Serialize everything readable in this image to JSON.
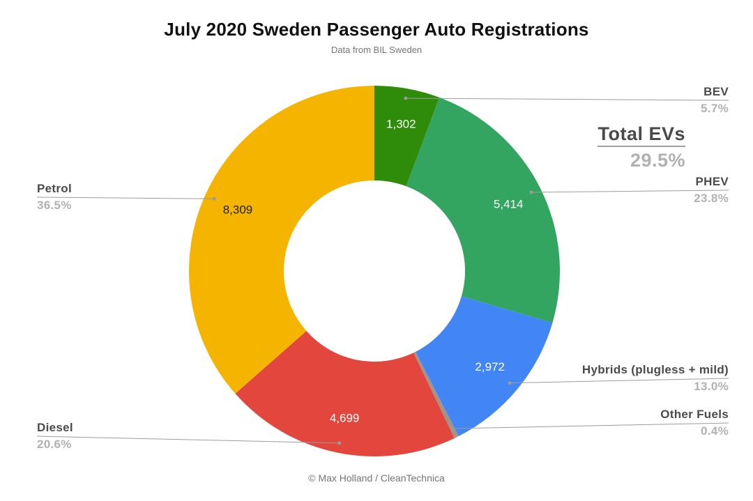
{
  "title": "July 2020 Sweden Passenger Auto Registrations",
  "subtitle": "Data from BIL Sweden",
  "footer": "© Max Holland / CleanTechnica",
  "total_evs": {
    "label": "Total EVs",
    "value": "29.5%"
  },
  "chart_data": {
    "type": "pie",
    "variant": "donut",
    "title": "July 2020 Sweden Passenger Auto Registrations",
    "direction": "clockwise",
    "start_angle_deg": 0,
    "slices": [
      {
        "label": "BEV",
        "pct": 5.7,
        "pct_label": "5.7%",
        "count": 1302,
        "count_label": "1,302",
        "color": "#2f8c0a",
        "value_text_color": "#ffffff"
      },
      {
        "label": "PHEV",
        "pct": 23.8,
        "pct_label": "23.8%",
        "count": 5414,
        "count_label": "5,414",
        "color": "#34a561",
        "value_text_color": "#ffffff"
      },
      {
        "label": "Hybrids (plugless + mild)",
        "pct": 13.0,
        "pct_label": "13.0%",
        "count": 2972,
        "count_label": "2,972",
        "color": "#4285f4",
        "value_text_color": "#ffffff"
      },
      {
        "label": "Other Fuels",
        "pct": 0.4,
        "pct_label": "0.4%",
        "count_label": "",
        "color": "#a79386"
      },
      {
        "label": "Diesel",
        "pct": 20.6,
        "pct_label": "20.6%",
        "count": 4699,
        "count_label": "4,699",
        "color": "#e2463c",
        "value_text_color": "#ffffff"
      },
      {
        "label": "Petrol",
        "pct": 36.5,
        "pct_label": "36.5%",
        "count": 8309,
        "count_label": "8,309",
        "color": "#f5b400",
        "value_text_color": "#1f1f1f"
      }
    ],
    "colors": {
      "leader_line": "#9b9b9b",
      "callout_label": "#4a4a4a",
      "callout_pct": "#b1b1b1",
      "title_text": "#101010",
      "muted_text": "#757575"
    }
  }
}
